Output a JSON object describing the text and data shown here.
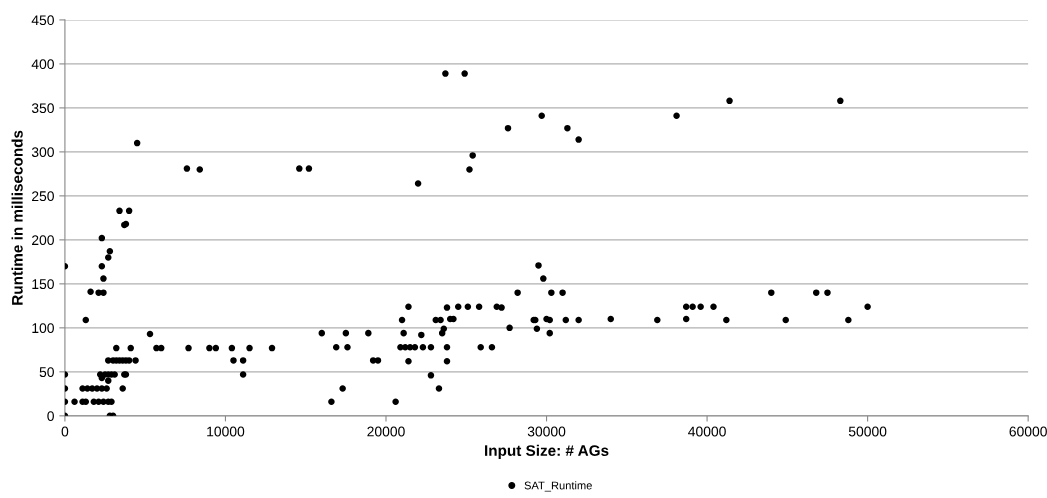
{
  "chart_data": {
    "type": "scatter",
    "xlabel": "Input Size: # AGs",
    "ylabel": "Runtime in milliseconds",
    "xlim": [
      0,
      60000
    ],
    "xticks": [
      0,
      10000,
      20000,
      30000,
      40000,
      50000,
      60000
    ],
    "ylim": [
      0,
      450
    ],
    "yticks": [
      0,
      50,
      100,
      150,
      200,
      250,
      300,
      350,
      400,
      450
    ],
    "grid": "y",
    "legend": "bottom",
    "marker": "circle",
    "series": [
      {
        "name": "SAT_Runtime",
        "color": "#000000",
        "x": [
          4500,
          7600,
          8400,
          3400,
          4000,
          3700,
          3800,
          2300,
          2800,
          2700,
          0,
          2300,
          2400,
          1600,
          2100,
          2400,
          1300,
          5300,
          3200,
          4100,
          5700,
          6000,
          7700,
          9000,
          9400,
          10400,
          11500,
          12900,
          2700,
          3000,
          3200,
          3400,
          3600,
          3800,
          4000,
          4400,
          10500,
          11100,
          0,
          2200,
          2500,
          2700,
          2900,
          3100,
          3700,
          3800,
          11100,
          2300,
          2700,
          0,
          1100,
          1400,
          1700,
          2000,
          2300,
          2600,
          3600,
          0,
          600,
          1100,
          1300,
          1800,
          2100,
          2400,
          2700,
          2900,
          0,
          2800,
          3000,
          14600,
          15200,
          22000,
          25200,
          25400,
          16000,
          16900,
          17500,
          17600,
          16600,
          17300,
          18900,
          19200,
          19500,
          20600,
          20900,
          21200,
          21500,
          21800,
          21000,
          21100,
          21400,
          21400,
          22200,
          22300,
          22800,
          22800,
          23300,
          23100,
          23400,
          23500,
          23600,
          23800,
          23800,
          23800,
          24000,
          24200,
          24500,
          25100,
          25800,
          25900,
          26600,
          26900,
          27200,
          27700,
          28200,
          29200,
          29300,
          29400,
          30000,
          30200,
          30200,
          30300,
          31000,
          31200,
          23700,
          24900,
          29700,
          38100,
          41400,
          48300,
          27600,
          31300,
          32000,
          29500,
          29800,
          44000,
          46800,
          47500,
          32000,
          34000,
          36900,
          38700,
          38700,
          39100,
          39600,
          40400,
          41200,
          44900,
          48800,
          50000
        ],
        "values": [
          310,
          281,
          280,
          233,
          233,
          217,
          218,
          202,
          187,
          180,
          170,
          170,
          156,
          141,
          140,
          140,
          109,
          93,
          77,
          77,
          77,
          77,
          77,
          77,
          77,
          77,
          77,
          77,
          63,
          63,
          63,
          63,
          63,
          63,
          63,
          63,
          63,
          63,
          47,
          47,
          47,
          47,
          47,
          47,
          47,
          47,
          47,
          43,
          40,
          31,
          31,
          31,
          31,
          31,
          31,
          31,
          31,
          16,
          16,
          16,
          16,
          16,
          16,
          16,
          16,
          16,
          0,
          0,
          0,
          281,
          281,
          264,
          280,
          296,
          94,
          78,
          94,
          78,
          16,
          31,
          94,
          63,
          63,
          16,
          78,
          78,
          78,
          78,
          109,
          94,
          124,
          62,
          92,
          78,
          78,
          46,
          31,
          109,
          109,
          94,
          99,
          62,
          78,
          123,
          110,
          110,
          124,
          124,
          124,
          78,
          78,
          124,
          123,
          100,
          140,
          109,
          109,
          99,
          110,
          109,
          94,
          140,
          140,
          109,
          389,
          389,
          341,
          341,
          358,
          358,
          327,
          327,
          314,
          171,
          156,
          140,
          140,
          140,
          109,
          110,
          109,
          110,
          124,
          124,
          124,
          124,
          109,
          109,
          109,
          124
        ]
      }
    ]
  }
}
